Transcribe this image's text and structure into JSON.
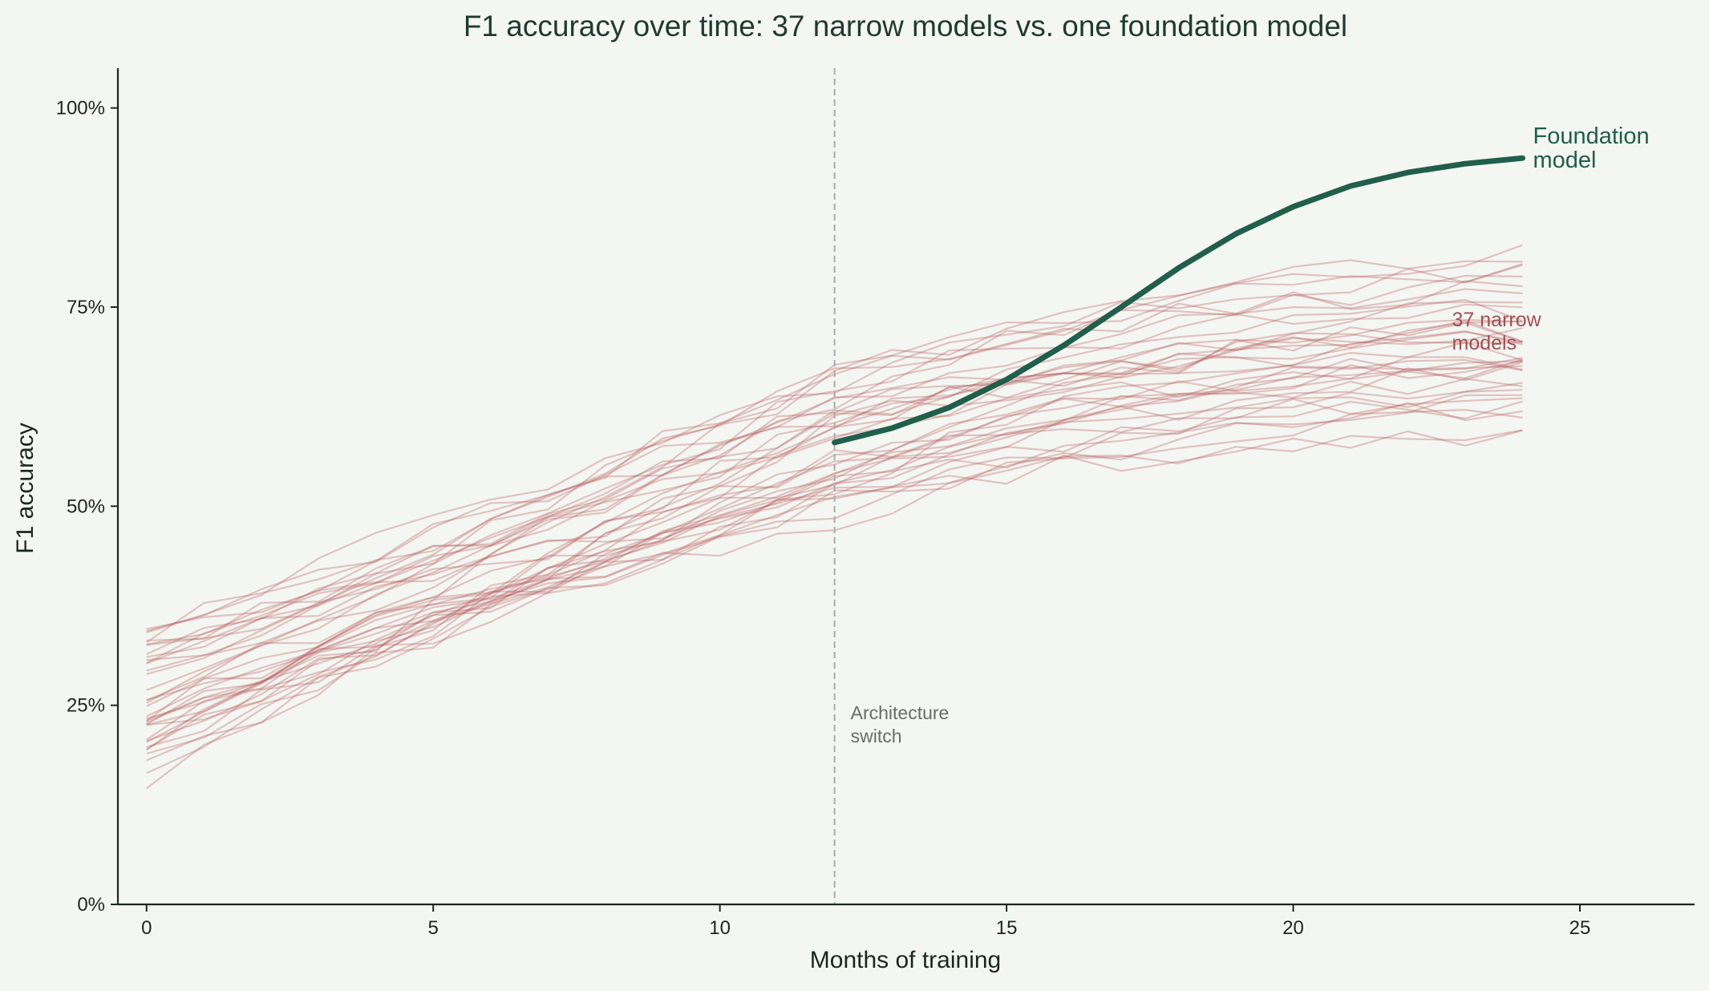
{
  "chart_data": {
    "type": "line",
    "title": "F1 accuracy over time: 37 narrow models vs. one foundation model",
    "xlabel": "Months of training",
    "ylabel": "F1 accuracy",
    "xlim": [
      -0.5,
      27
    ],
    "ylim": [
      0,
      105
    ],
    "xticks": [
      0,
      5,
      10,
      15,
      20,
      25
    ],
    "yticks": [
      0,
      25,
      50,
      75,
      100
    ],
    "ytick_labels": [
      "0%",
      "25%",
      "50%",
      "75%",
      "100%"
    ],
    "grid": false,
    "colors": {
      "background": "#f4f6f1",
      "axis": "#1c2622",
      "foundation": "#215e4b",
      "narrow": "#b5585e",
      "narrow_label": "#a34f52",
      "vline": "#aaaaaa",
      "annotation": "#6b6b6b",
      "title": "#1f3a32"
    },
    "foundation_series": {
      "x": [
        12,
        13,
        14,
        15,
        16,
        17,
        18,
        19,
        20,
        21,
        22,
        23,
        24
      ],
      "values": [
        58.0,
        59.8,
        62.4,
        65.9,
        70.2,
        75.0,
        79.9,
        84.2,
        87.6,
        90.2,
        91.9,
        93.0,
        93.7
      ]
    },
    "narrow_series": {
      "count": 37,
      "x": [
        0,
        1,
        2,
        3,
        4,
        5,
        6,
        7,
        8,
        9,
        10,
        11,
        12,
        13,
        14,
        15,
        16,
        17,
        18,
        19,
        20,
        21,
        22,
        23,
        24
      ],
      "start_range": [
        16,
        36
      ],
      "month12_range": [
        46,
        70
      ],
      "end_range": [
        57,
        83
      ]
    },
    "annotations": [
      {
        "text": "Architecture",
        "line2": "switch",
        "x": 12
      },
      {
        "text": "Foundation",
        "line2": "model",
        "x": 24
      },
      {
        "text": "37 narrow",
        "line2": "models",
        "x": 24
      }
    ],
    "vline_x": 12
  }
}
